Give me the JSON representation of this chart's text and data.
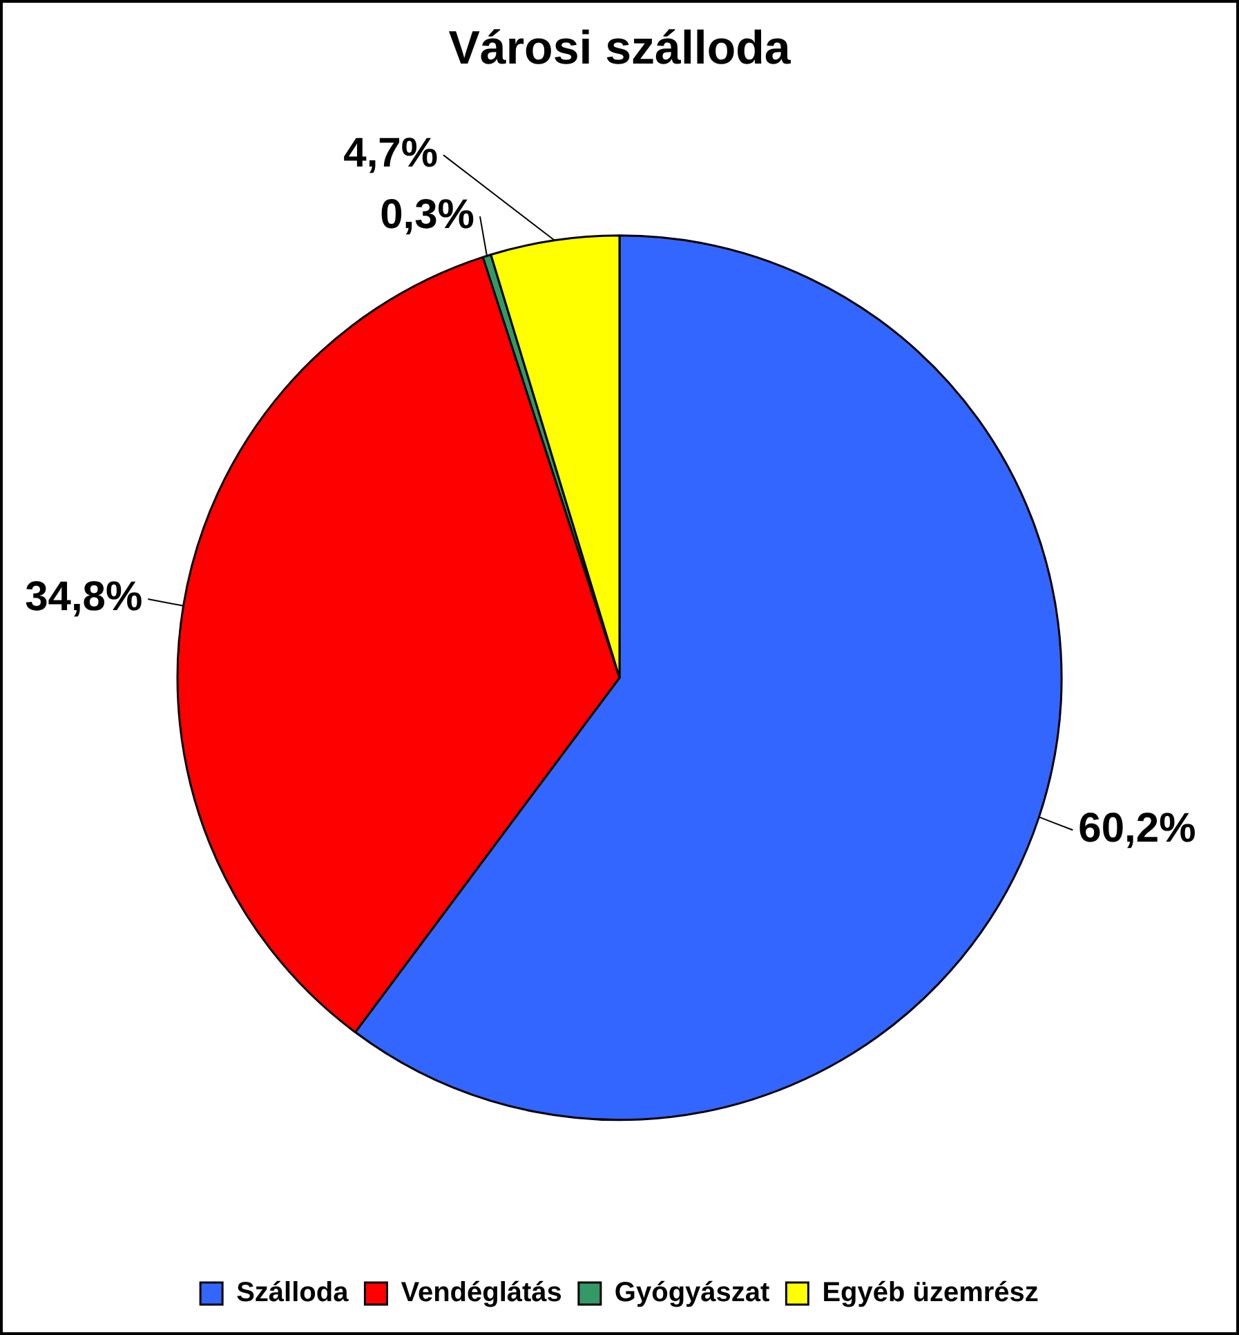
{
  "chart_data": {
    "type": "pie",
    "title": "Városi szálloda",
    "categories": [
      "Szálloda",
      "Vendéglátás",
      "Gyógyászat",
      "Egyéb üzemrész"
    ],
    "values": [
      60.2,
      34.8,
      0.3,
      4.7
    ],
    "colors": [
      "#3366ff",
      "#ff0000",
      "#339966",
      "#ffff00"
    ],
    "value_labels": [
      "60,2%",
      "34,8%",
      "0,3%",
      "4,7%"
    ],
    "legend": "bottom"
  }
}
